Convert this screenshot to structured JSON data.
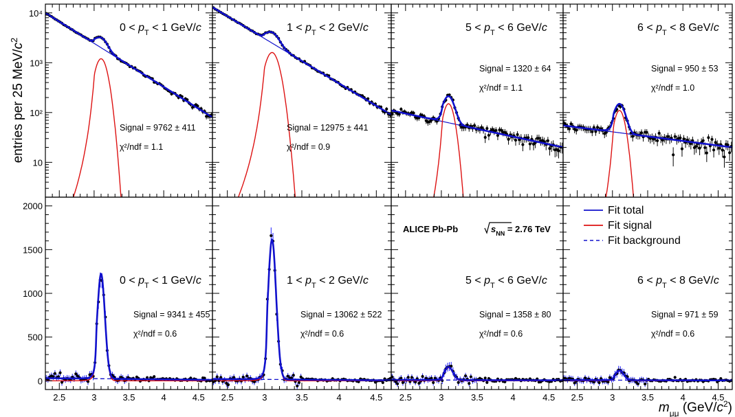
{
  "figure": {
    "ylabel_top": "entries per 25 MeV/c²",
    "xlabel": "m_μμ (GeV/c²)",
    "collaboration": "ALICE Pb-Pb",
    "energy": "= 2.76 TeV",
    "legend": [
      "Fit total",
      "Fit signal",
      "Fit background"
    ]
  },
  "colors": {
    "total": "#1010cc",
    "signal": "#dd1111",
    "background": "#1010cc",
    "data": "#000000",
    "errorbar": "#1a1aff"
  },
  "axes": {
    "x_ticks": [
      "2.5",
      "3",
      "3.5",
      "4",
      "4.5"
    ],
    "y_top_ticks": [
      "10",
      "10²",
      "10³",
      "10⁴"
    ],
    "y_bottom_ticks": [
      "0",
      "500",
      "1000",
      "1500",
      "2000"
    ]
  },
  "panels": [
    {
      "range": "0 < p_T < 1 GeV/c",
      "signal_text": "Signal = 9762 ± 411",
      "chi2_text": "χ²/ndf = 1.1"
    },
    {
      "range": "1 < p_T < 2 GeV/c",
      "signal_text": "Signal = 12975 ± 441",
      "chi2_text": "χ²/ndf = 0.9"
    },
    {
      "range": "5 < p_T < 6 GeV/c",
      "signal_text": "Signal = 1320 ± 64",
      "chi2_text": "χ²/ndf = 1.1"
    },
    {
      "range": "6 < p_T < 8 GeV/c",
      "signal_text": "Signal = 950 ± 53",
      "chi2_text": "χ²/ndf = 1.0"
    },
    {
      "range": "0 < p_T < 1 GeV/c",
      "signal_text": "Signal = 9341 ± 455",
      "chi2_text": "χ²/ndf = 0.6"
    },
    {
      "range": "1 < p_T < 2 GeV/c",
      "signal_text": "Signal = 13062 ± 522",
      "chi2_text": "χ²/ndf = 0.6"
    },
    {
      "range": "5 < p_T < 6 GeV/c",
      "signal_text": "Signal = 1358 ± 80",
      "chi2_text": "χ²/ndf = 0.6"
    },
    {
      "range": "6 < p_T < 8 GeV/c",
      "signal_text": "Signal = 971 ± 59",
      "chi2_text": "χ²/ndf = 0.6"
    }
  ],
  "chart_data": [
    {
      "type": "line",
      "scale": "log",
      "xlim": [
        2.3,
        4.7
      ],
      "ylim": [
        2,
        15000
      ],
      "peak_x": 3.1,
      "sigma": 0.08,
      "background": {
        "y_at_2_3": 10000,
        "y_at_4_7": 80
      },
      "signal_peak": 1200,
      "signal_text": "Signal = 9762 ± 411",
      "chi2_text": "χ²/ndf = 1.1"
    },
    {
      "type": "line",
      "scale": "log",
      "xlim": [
        2.3,
        4.7
      ],
      "ylim": [
        2,
        15000
      ],
      "peak_x": 3.1,
      "sigma": 0.085,
      "background": {
        "y_at_2_3": 13000,
        "y_at_4_7": 90
      },
      "signal_peak": 1600,
      "signal_text": "Signal = 12975 ± 441",
      "chi2_text": "χ²/ndf = 0.9"
    },
    {
      "type": "line",
      "scale": "log",
      "xlim": [
        2.3,
        4.7
      ],
      "ylim": [
        2,
        15000
      ],
      "peak_x": 3.1,
      "sigma": 0.07,
      "background": {
        "y_at_2_3": 110,
        "y_at_4_7": 20
      },
      "signal_peak": 150,
      "signal_text": "Signal = 1320 ± 64",
      "chi2_text": "χ²/ndf = 1.1"
    },
    {
      "type": "line",
      "scale": "log",
      "xlim": [
        2.3,
        4.7
      ],
      "ylim": [
        2,
        15000
      ],
      "peak_x": 3.1,
      "sigma": 0.07,
      "background": {
        "y_at_2_3": 55,
        "y_at_4_7": 20
      },
      "signal_peak": 110,
      "signal_text": "Signal = 950 ± 53",
      "chi2_text": "χ²/ndf = 1.0"
    },
    {
      "type": "line",
      "scale": "linear",
      "xlim": [
        2.3,
        4.7
      ],
      "ylim": [
        -100,
        2100
      ],
      "peak_x": 3.1,
      "sigma": 0.055,
      "background": {
        "y_at_2_3": 30,
        "y_at_4_7": 10
      },
      "signal_peak": 1200,
      "signal_text": "Signal = 9341 ± 455",
      "chi2_text": "χ²/ndf = 0.6"
    },
    {
      "type": "line",
      "scale": "linear",
      "xlim": [
        2.3,
        4.7
      ],
      "ylim": [
        -100,
        2100
      ],
      "peak_x": 3.1,
      "sigma": 0.055,
      "background": {
        "y_at_2_3": 20,
        "y_at_4_7": 5
      },
      "signal_peak": 1600,
      "signal_text": "Signal = 13062 ± 522",
      "chi2_text": "χ²/ndf = 0.6"
    },
    {
      "type": "line",
      "scale": "linear",
      "xlim": [
        2.3,
        4.7
      ],
      "ylim": [
        -100,
        2100
      ],
      "peak_x": 3.1,
      "sigma": 0.06,
      "background": {
        "y_at_2_3": 10,
        "y_at_4_7": 5
      },
      "signal_peak": 150,
      "signal_text": "Signal = 1358 ± 80",
      "chi2_text": "χ²/ndf = 0.6"
    },
    {
      "type": "line",
      "scale": "linear",
      "xlim": [
        2.3,
        4.7
      ],
      "ylim": [
        -100,
        2100
      ],
      "peak_x": 3.1,
      "sigma": 0.06,
      "background": {
        "y_at_2_3": 8,
        "y_at_4_7": 4
      },
      "signal_peak": 110,
      "signal_text": "Signal = 971 ± 59",
      "chi2_text": "χ²/ndf = 0.6"
    }
  ]
}
